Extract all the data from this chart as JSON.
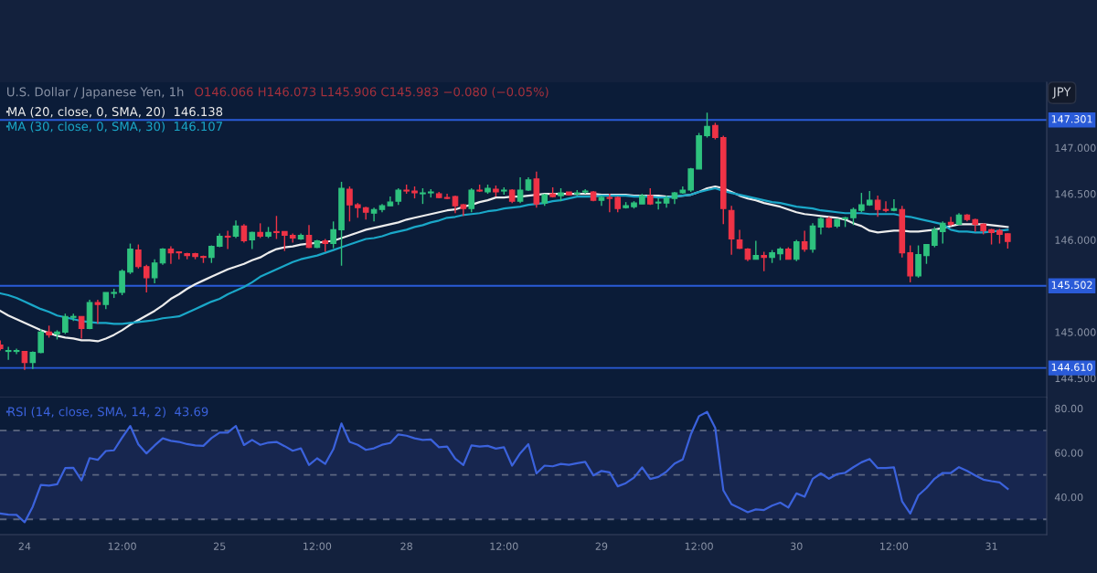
{
  "chart_data": [
    {
      "type": "candlestick",
      "title": "U.S. Dollar / Japanese Yen, 1h",
      "subtitle": "O146.066 H146.073 L145.906 C145.983 −0.080 (−0.05%)",
      "ylabel": "JPY",
      "categories": [
        null,
        null,
        null,
        null,
        null,
        null,
        null,
        null,
        null,
        null,
        null,
        null,
        null,
        null,
        null,
        null,
        null,
        null,
        null,
        null,
        null,
        null,
        null,
        null,
        null,
        null,
        null,
        null,
        null,
        null,
        null,
        null,
        null,
        null,
        null,
        null,
        null,
        null,
        null,
        null,
        null,
        null,
        null,
        null,
        null,
        null,
        null,
        null,
        null,
        null,
        null,
        null,
        null,
        null,
        null,
        null,
        null,
        null,
        null,
        null,
        null,
        null,
        null,
        null,
        null,
        null,
        null,
        null,
        null,
        null,
        null,
        null,
        null,
        null,
        null,
        null,
        null,
        null,
        null,
        null,
        null,
        null,
        null,
        null,
        null,
        null,
        null,
        null,
        null,
        null,
        null,
        null,
        null,
        null,
        null,
        null,
        null,
        null,
        null,
        null,
        null,
        null,
        null,
        null,
        null,
        null,
        null,
        null,
        null,
        null,
        null,
        null,
        null,
        null,
        null,
        null,
        null,
        null,
        null,
        null,
        null,
        null,
        null,
        null,
        null
      ],
      "ohlc": [
        [
          144.86,
          144.91,
          144.8,
          144.82
        ],
        [
          144.79,
          144.84,
          144.7,
          144.8
        ],
        [
          144.79,
          144.82,
          144.76,
          144.8
        ],
        [
          144.79,
          144.79,
          144.59,
          144.67
        ],
        [
          144.67,
          144.79,
          144.6,
          144.78
        ],
        [
          144.78,
          145.03,
          144.77,
          145.0
        ],
        [
          145.0,
          145.07,
          144.94,
          144.97
        ],
        [
          144.98,
          145.02,
          144.92,
          145.0
        ],
        [
          145.0,
          145.2,
          144.98,
          145.17
        ],
        [
          145.16,
          145.2,
          145.12,
          145.17
        ],
        [
          145.17,
          145.17,
          144.93,
          145.04
        ],
        [
          145.04,
          145.35,
          145.03,
          145.32
        ],
        [
          145.32,
          145.35,
          145.09,
          145.3
        ],
        [
          145.3,
          145.43,
          145.25,
          145.43
        ],
        [
          145.42,
          145.47,
          145.37,
          145.43
        ],
        [
          145.43,
          145.68,
          145.4,
          145.66
        ],
        [
          145.65,
          145.96,
          145.63,
          145.9
        ],
        [
          145.89,
          145.95,
          145.69,
          145.71
        ],
        [
          145.71,
          145.73,
          145.43,
          145.59
        ],
        [
          145.59,
          145.79,
          145.53,
          145.75
        ],
        [
          145.75,
          145.91,
          145.73,
          145.9
        ],
        [
          145.9,
          145.93,
          145.74,
          145.86
        ],
        [
          145.87,
          145.87,
          145.79,
          145.86
        ],
        [
          145.85,
          145.86,
          145.79,
          145.83
        ],
        [
          145.85,
          145.86,
          145.79,
          145.82
        ],
        [
          145.82,
          145.83,
          145.75,
          145.81
        ],
        [
          145.81,
          145.94,
          145.75,
          145.93
        ],
        [
          145.93,
          146.07,
          145.92,
          146.04
        ],
        [
          146.04,
          146.1,
          145.9,
          146.03
        ],
        [
          146.04,
          146.21,
          146.02,
          146.15
        ],
        [
          146.15,
          146.17,
          145.97,
          145.99
        ],
        [
          146.0,
          146.09,
          145.9,
          146.08
        ],
        [
          146.08,
          146.18,
          146.02,
          146.04
        ],
        [
          146.04,
          146.14,
          146.02,
          146.08
        ],
        [
          146.09,
          146.26,
          146.01,
          146.08
        ],
        [
          146.09,
          146.09,
          145.88,
          146.05
        ],
        [
          146.05,
          146.07,
          145.97,
          146.02
        ],
        [
          146.01,
          146.07,
          146.0,
          146.05
        ],
        [
          146.05,
          146.16,
          145.91,
          145.92
        ],
        [
          145.92,
          146.0,
          145.91,
          145.99
        ],
        [
          145.99,
          146.01,
          145.87,
          145.96
        ],
        [
          145.96,
          146.2,
          145.91,
          146.11
        ],
        [
          146.11,
          146.63,
          145.72,
          146.56
        ],
        [
          146.55,
          146.58,
          146.2,
          146.38
        ],
        [
          146.38,
          146.4,
          146.24,
          146.35
        ],
        [
          146.35,
          146.36,
          146.22,
          146.3
        ],
        [
          146.29,
          146.35,
          146.2,
          146.33
        ],
        [
          146.33,
          146.39,
          146.3,
          146.37
        ],
        [
          146.37,
          146.47,
          146.37,
          146.41
        ],
        [
          146.42,
          146.56,
          146.38,
          146.54
        ],
        [
          146.54,
          146.6,
          146.5,
          146.53
        ],
        [
          146.53,
          146.58,
          146.45,
          146.51
        ],
        [
          146.5,
          146.56,
          146.39,
          146.51
        ],
        [
          146.51,
          146.55,
          146.46,
          146.52
        ],
        [
          146.5,
          146.52,
          146.45,
          146.46
        ],
        [
          146.46,
          146.5,
          146.44,
          146.45
        ],
        [
          146.47,
          146.48,
          146.29,
          146.37
        ],
        [
          146.38,
          146.39,
          146.26,
          146.34
        ],
        [
          146.34,
          146.56,
          146.3,
          146.54
        ],
        [
          146.54,
          146.6,
          146.52,
          146.53
        ],
        [
          146.52,
          146.6,
          146.5,
          146.56
        ],
        [
          146.55,
          146.59,
          146.47,
          146.52
        ],
        [
          146.53,
          146.57,
          146.49,
          146.54
        ],
        [
          146.54,
          146.55,
          146.4,
          146.42
        ],
        [
          146.42,
          146.68,
          146.4,
          146.54
        ],
        [
          146.54,
          146.68,
          146.53,
          146.65
        ],
        [
          146.66,
          146.74,
          146.35,
          146.39
        ],
        [
          146.4,
          146.5,
          146.37,
          146.49
        ],
        [
          146.5,
          146.57,
          146.46,
          146.47
        ],
        [
          146.48,
          146.56,
          146.42,
          146.51
        ],
        [
          146.52,
          146.52,
          146.48,
          146.49
        ],
        [
          146.5,
          146.54,
          146.48,
          146.51
        ],
        [
          146.52,
          146.55,
          146.5,
          146.53
        ],
        [
          146.52,
          146.53,
          146.42,
          146.43
        ],
        [
          146.43,
          146.48,
          146.37,
          146.46
        ],
        [
          146.46,
          146.5,
          146.3,
          146.45
        ],
        [
          146.46,
          146.47,
          146.3,
          146.34
        ],
        [
          146.35,
          146.41,
          146.34,
          146.37
        ],
        [
          146.36,
          146.42,
          146.34,
          146.4
        ],
        [
          146.39,
          146.5,
          146.39,
          146.48
        ],
        [
          146.48,
          146.56,
          146.38,
          146.39
        ],
        [
          146.4,
          146.45,
          146.33,
          146.41
        ],
        [
          146.4,
          146.48,
          146.35,
          146.45
        ],
        [
          146.45,
          146.52,
          146.39,
          146.51
        ],
        [
          146.51,
          146.58,
          146.5,
          146.54
        ],
        [
          146.54,
          146.78,
          146.52,
          146.77
        ],
        [
          146.77,
          147.16,
          146.77,
          147.13
        ],
        [
          147.13,
          147.38,
          147.11,
          147.23
        ],
        [
          147.24,
          147.27,
          147.09,
          147.11
        ],
        [
          147.11,
          147.13,
          146.17,
          146.34
        ],
        [
          146.32,
          146.37,
          145.84,
          146.01
        ],
        [
          146.0,
          146.11,
          145.9,
          145.91
        ],
        [
          145.9,
          145.91,
          145.77,
          145.79
        ],
        [
          145.79,
          145.99,
          145.79,
          145.83
        ],
        [
          145.83,
          145.87,
          145.66,
          145.81
        ],
        [
          145.81,
          145.89,
          145.75,
          145.86
        ],
        [
          145.85,
          145.92,
          145.78,
          145.9
        ],
        [
          145.9,
          145.92,
          145.79,
          145.79
        ],
        [
          145.79,
          146.0,
          145.77,
          145.98
        ],
        [
          145.98,
          146.1,
          145.87,
          145.9
        ],
        [
          145.9,
          146.18,
          145.86,
          146.15
        ],
        [
          146.14,
          146.25,
          146.06,
          146.23
        ],
        [
          146.23,
          146.25,
          146.13,
          146.14
        ],
        [
          146.15,
          146.23,
          146.13,
          146.22
        ],
        [
          146.23,
          146.25,
          146.14,
          146.24
        ],
        [
          146.24,
          146.35,
          146.16,
          146.33
        ],
        [
          146.32,
          146.51,
          146.3,
          146.38
        ],
        [
          146.38,
          146.53,
          146.37,
          146.43
        ],
        [
          146.43,
          146.48,
          146.25,
          146.33
        ],
        [
          146.33,
          146.42,
          146.3,
          146.32
        ],
        [
          146.32,
          146.44,
          146.31,
          146.34
        ],
        [
          146.33,
          146.37,
          145.81,
          145.86
        ],
        [
          145.86,
          145.94,
          145.54,
          145.61
        ],
        [
          145.61,
          145.94,
          145.59,
          145.84
        ],
        [
          145.83,
          145.95,
          145.74,
          145.95
        ],
        [
          145.94,
          146.14,
          145.92,
          146.11
        ],
        [
          146.09,
          146.2,
          145.96,
          146.18
        ],
        [
          146.19,
          146.25,
          146.15,
          146.17
        ],
        [
          146.17,
          146.29,
          146.16,
          146.27
        ],
        [
          146.27,
          146.28,
          146.2,
          146.22
        ],
        [
          146.22,
          146.23,
          146.09,
          146.17
        ],
        [
          146.17,
          146.18,
          146.06,
          146.1
        ],
        [
          146.11,
          146.12,
          145.95,
          146.08
        ],
        [
          146.1,
          146.12,
          145.96,
          146.06
        ],
        [
          146.066,
          146.073,
          145.906,
          145.983
        ]
      ],
      "colors": [
        "#ef3346",
        "#2ec27e",
        "#2ec27e",
        "#ef3346",
        "#2ec27e",
        "#2ec27e",
        "#ef3346",
        "#2ec27e",
        "#2ec27e",
        "#2ec27e",
        "#ef3346",
        "#2ec27e",
        "#ef3346",
        "#2ec27e",
        "#2ec27e",
        "#2ec27e",
        "#2ec27e",
        "#ef3346",
        "#ef3346",
        "#2ec27e",
        "#2ec27e",
        "#ef3346",
        "#ef3346",
        "#ef3346",
        "#ef3346",
        "#ef3346",
        "#2ec27e",
        "#2ec27e",
        "#ef3346",
        "#2ec27e",
        "#ef3346",
        "#2ec27e",
        "#ef3346",
        "#2ec27e",
        "#ef3346",
        "#ef3346",
        "#ef3346",
        "#2ec27e",
        "#ef3346",
        "#2ec27e",
        "#ef3346",
        "#2ec27e",
        "#2ec27e",
        "#ef3346",
        "#ef3346",
        "#ef3346",
        "#2ec27e",
        "#2ec27e",
        "#2ec27e",
        "#2ec27e",
        "#ef3346",
        "#ef3346",
        "#2ec27e",
        "#2ec27e",
        "#ef3346",
        "#ef3346",
        "#ef3346",
        "#ef3346",
        "#2ec27e",
        "#ef3346",
        "#2ec27e",
        "#ef3346",
        "#2ec27e",
        "#ef3346",
        "#2ec27e",
        "#2ec27e",
        "#ef3346",
        "#2ec27e",
        "#ef3346",
        "#2ec27e",
        "#ef3346",
        "#2ec27e",
        "#2ec27e",
        "#ef3346",
        "#2ec27e",
        "#ef3346",
        "#ef3346",
        "#2ec27e",
        "#2ec27e",
        "#2ec27e",
        "#ef3346",
        "#2ec27e",
        "#2ec27e",
        "#2ec27e",
        "#2ec27e",
        "#2ec27e",
        "#2ec27e",
        "#2ec27e",
        "#ef3346",
        "#ef3346",
        "#ef3346",
        "#ef3346",
        "#ef3346",
        "#2ec27e",
        "#ef3346",
        "#2ec27e",
        "#2ec27e",
        "#ef3346",
        "#2ec27e",
        "#ef3346",
        "#2ec27e",
        "#2ec27e",
        "#ef3346",
        "#2ec27e",
        "#2ec27e",
        "#2ec27e",
        "#2ec27e",
        "#2ec27e",
        "#ef3346",
        "#ef3346",
        "#2ec27e",
        "#ef3346",
        "#ef3346",
        "#2ec27e",
        "#2ec27e",
        "#2ec27e",
        "#2ec27e",
        "#ef3346",
        "#2ec27e",
        "#ef3346",
        "#ef3346",
        "#ef3346",
        "#ef3346",
        "#ef3346",
        "#ef3346"
      ],
      "series": [
        {
          "name": "MA (20, close, 0, SMA, 20)  146.138",
          "type": "line",
          "color": "#ececec",
          "values": [
            145.23,
            145.18,
            145.14,
            145.1,
            145.06,
            145.02,
            144.99,
            144.96,
            144.94,
            144.93,
            144.91,
            144.91,
            144.9,
            144.93,
            144.97,
            145.02,
            145.08,
            145.13,
            145.18,
            145.23,
            145.29,
            145.36,
            145.41,
            145.47,
            145.52,
            145.56,
            145.6,
            145.64,
            145.68,
            145.71,
            145.74,
            145.78,
            145.81,
            145.86,
            145.9,
            145.92,
            145.93,
            145.95,
            145.96,
            145.97,
            145.98,
            145.99,
            146.02,
            146.05,
            146.08,
            146.11,
            146.13,
            146.15,
            146.17,
            146.19,
            146.22,
            146.24,
            146.26,
            146.28,
            146.3,
            146.32,
            146.33,
            146.36,
            146.38,
            146.41,
            146.43,
            146.46,
            146.46,
            146.47,
            146.47,
            146.48,
            146.49,
            146.5,
            146.5,
            146.5,
            146.5,
            146.5,
            146.5,
            146.5,
            146.49,
            146.49,
            146.49,
            146.49,
            146.48,
            146.48,
            146.48,
            146.48,
            146.47,
            146.47,
            146.48,
            146.49,
            146.52,
            146.56,
            146.58,
            146.56,
            146.52,
            146.48,
            146.45,
            146.43,
            146.4,
            146.38,
            146.36,
            146.33,
            146.3,
            146.28,
            146.27,
            146.26,
            146.25,
            146.24,
            146.22,
            146.18,
            146.15,
            146.1,
            146.08,
            146.09,
            146.1,
            146.1,
            146.09,
            146.09,
            146.1,
            146.11,
            146.13,
            146.15,
            146.17,
            146.17,
            146.17,
            146.17,
            146.16,
            146.15,
            146.14
          ]
        },
        {
          "name": "MA (30, close, 0, SMA, 30)  146.107",
          "type": "line",
          "color": "#1aa7c8",
          "values": [
            145.42,
            145.4,
            145.37,
            145.33,
            145.29,
            145.25,
            145.22,
            145.18,
            145.16,
            145.14,
            145.12,
            145.11,
            145.1,
            145.1,
            145.09,
            145.09,
            145.1,
            145.11,
            145.12,
            145.13,
            145.15,
            145.16,
            145.17,
            145.21,
            145.25,
            145.29,
            145.33,
            145.36,
            145.41,
            145.45,
            145.49,
            145.54,
            145.6,
            145.64,
            145.68,
            145.72,
            145.76,
            145.79,
            145.81,
            145.83,
            145.86,
            145.89,
            145.92,
            145.95,
            145.98,
            146.01,
            146.02,
            146.04,
            146.07,
            146.09,
            146.11,
            146.14,
            146.16,
            146.19,
            146.21,
            146.24,
            146.25,
            146.27,
            146.28,
            146.29,
            146.31,
            146.32,
            146.34,
            146.35,
            146.36,
            146.38,
            146.39,
            146.4,
            146.42,
            146.43,
            146.45,
            146.47,
            146.47,
            146.47,
            146.48,
            146.48,
            146.48,
            146.48,
            146.47,
            146.47,
            146.47,
            146.46,
            146.46,
            146.47,
            146.48,
            146.49,
            146.52,
            146.54,
            146.56,
            146.53,
            146.51,
            146.49,
            146.47,
            146.45,
            146.43,
            146.41,
            146.4,
            146.38,
            146.36,
            146.35,
            146.34,
            146.32,
            146.31,
            146.3,
            146.29,
            146.29,
            146.29,
            146.28,
            146.28,
            146.28,
            146.28,
            146.26,
            146.25,
            146.23,
            146.21,
            146.19,
            146.17,
            146.11,
            146.09,
            146.09,
            146.08,
            146.08,
            146.09,
            146.1,
            146.11
          ]
        }
      ],
      "ylim": [
        144.29,
        147.71
      ],
      "yticks": [
        {
          "value": 144.5,
          "label": "144.500"
        },
        {
          "value": 145,
          "label": "145.000"
        },
        {
          "value": 146,
          "label": "146.000"
        },
        {
          "value": 146.5,
          "label": "146.500"
        },
        {
          "value": 147,
          "label": "147.000"
        }
      ],
      "tick_labels": "y",
      "legend": "top left",
      "ref_lines": [
        {
          "axis": "y",
          "value": 147.301,
          "label": "147.301",
          "color": "#2a5bd8"
        },
        {
          "axis": "y",
          "value": 145.502,
          "label": "145.502",
          "color": "#2a5bd8"
        },
        {
          "axis": "y",
          "value": 144.61,
          "label": "144.610",
          "color": "#2a5bd8"
        }
      ]
    },
    {
      "type": "line",
      "categories": [
        null,
        null,
        null,
        "24",
        null,
        null,
        null,
        null,
        null,
        null,
        null,
        null,
        null,
        null,
        null,
        "12:00",
        null,
        null,
        null,
        null,
        null,
        null,
        null,
        null,
        null,
        null,
        null,
        "25",
        null,
        null,
        null,
        null,
        null,
        null,
        null,
        null,
        null,
        null,
        null,
        "12:00",
        null,
        null,
        null,
        null,
        null,
        null,
        null,
        null,
        null,
        null,
        "28",
        null,
        null,
        null,
        null,
        null,
        null,
        null,
        null,
        null,
        null,
        null,
        "12:00",
        null,
        null,
        null,
        null,
        null,
        null,
        null,
        null,
        null,
        null,
        null,
        "29",
        null,
        null,
        null,
        null,
        null,
        null,
        null,
        null,
        null,
        null,
        null,
        "12:00",
        null,
        null,
        null,
        null,
        null,
        null,
        null,
        null,
        null,
        null,
        null,
        "30",
        null,
        null,
        null,
        null,
        null,
        null,
        null,
        null,
        null,
        null,
        null,
        "12:00",
        null,
        null,
        null,
        null,
        null,
        null,
        null,
        null,
        null,
        null,
        null,
        "31",
        null,
        null
      ],
      "series": [
        {
          "name": "RSI (14, close, SMA, 14, 2)  43.69",
          "color": "#3b62dc",
          "values": [
            32.6,
            32.1,
            32.0,
            28.7,
            35.7,
            45.5,
            45.2,
            45.8,
            53.1,
            53.2,
            47.6,
            57.6,
            56.8,
            60.8,
            61.1,
            66.8,
            72.1,
            63.8,
            59.7,
            63.3,
            66.5,
            65.4,
            64.9,
            63.9,
            63.3,
            63.1,
            66.6,
            69.1,
            69.1,
            72.1,
            63.5,
            65.8,
            63.6,
            64.6,
            64.9,
            63.0,
            60.9,
            62.0,
            54.5,
            57.5,
            55.0,
            61.6,
            73.2,
            64.9,
            63.6,
            61.3,
            62.0,
            63.6,
            64.4,
            68.3,
            67.7,
            66.5,
            65.8,
            66.0,
            62.5,
            62.8,
            57.3,
            54.5,
            63.3,
            62.8,
            63.1,
            61.9,
            62.5,
            54.2,
            59.8,
            63.9,
            50.7,
            54.2,
            53.9,
            55.0,
            54.6,
            55.3,
            55.9,
            49.8,
            51.8,
            51.2,
            44.9,
            46.3,
            48.8,
            53.4,
            48.2,
            49.1,
            51.5,
            55.1,
            57.0,
            68.3,
            76.5,
            78.4,
            71.2,
            43.1,
            36.8,
            35.0,
            33.2,
            34.5,
            34.2,
            36.2,
            37.5,
            35.3,
            41.7,
            40.2,
            48.3,
            50.7,
            48.3,
            50.4,
            51.0,
            53.5,
            55.7,
            57.2,
            53.1,
            53.1,
            53.4,
            38.1,
            32.6,
            40.8,
            44.1,
            48.3,
            50.9,
            50.9,
            53.5,
            51.8,
            49.8,
            47.9,
            47.2,
            46.6,
            43.7
          ]
        }
      ],
      "ylim": [
        23.1,
        84.9
      ],
      "yticks": [
        {
          "value": 40,
          "label": "40.00"
        },
        {
          "value": 60,
          "label": "60.00"
        },
        {
          "value": 80,
          "label": "80.00"
        }
      ],
      "legend": "top left",
      "ref_lines": [
        {
          "axis": "y",
          "value": 70,
          "line_style": "dashed",
          "color": "#5c6680"
        },
        {
          "axis": "y",
          "value": 50,
          "line_style": "dashed",
          "color": "#5c6680"
        },
        {
          "axis": "y",
          "value": 30,
          "line_style": "dashed",
          "color": "#5c6680"
        }
      ],
      "bands": [
        {
          "axis": "y",
          "from": 30,
          "to": 70,
          "color": "#17264f"
        }
      ]
    }
  ]
}
